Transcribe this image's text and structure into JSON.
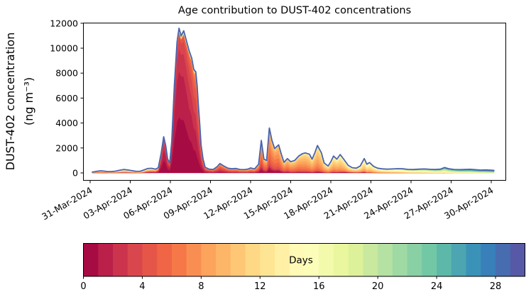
{
  "chart_data": {
    "type": "area",
    "subtype": "age-stacked-area-timeseries",
    "title": "Age contribution to DUST-402 concentrations",
    "ylabel_line1": "DUST-402 concentration",
    "ylabel_line2": "(ng m⁻³)",
    "xlabel": "",
    "ylim": [
      -625,
      12045
    ],
    "yticks": [
      0,
      2000,
      4000,
      6000,
      8000,
      10000,
      12000
    ],
    "xticks": [
      {
        "day": 0,
        "label": "31-Mar-2024"
      },
      {
        "day": 3,
        "label": "03-Apr-2024"
      },
      {
        "day": 6,
        "label": "06-Apr-2024"
      },
      {
        "day": 9,
        "label": "09-Apr-2024"
      },
      {
        "day": 12,
        "label": "12-Apr-2024"
      },
      {
        "day": 15,
        "label": "15-Apr-2024"
      },
      {
        "day": 18,
        "label": "18-Apr-2024"
      },
      {
        "day": 21,
        "label": "21-Apr-2024"
      },
      {
        "day": 24,
        "label": "24-Apr-2024"
      },
      {
        "day": 27,
        "label": "27-Apr-2024"
      },
      {
        "day": 30,
        "label": "30-Apr-2024"
      }
    ],
    "grid": false,
    "legend": "colorbar",
    "colorbar": {
      "label": "Days",
      "min": 0,
      "max": 30,
      "n_bins": 30,
      "ticks": [
        0,
        4,
        8,
        12,
        16,
        20,
        24,
        28
      ],
      "colormap_name": "Spectral",
      "colormap_anchors": [
        "#9e0142",
        "#d53e4f",
        "#f46d43",
        "#fdae61",
        "#fee08b",
        "#ffffbf",
        "#e6f598",
        "#abdda4",
        "#66c2a5",
        "#3288bd",
        "#5e4fa2"
      ]
    },
    "line_color": "#4a63ad",
    "samples_format": "[days_since_31_Mar_2024, total_ng_m3, mean_age_days, age_spread_days, fresh_age0_fraction]",
    "samples": [
      [
        0.16,
        60,
        9,
        5,
        0.05
      ],
      [
        0.5,
        130,
        9,
        5,
        0.05
      ],
      [
        0.8,
        170,
        9,
        5,
        0.05
      ],
      [
        1.0,
        150,
        9,
        5,
        0.05
      ],
      [
        1.3,
        110,
        9,
        5,
        0.05
      ],
      [
        1.6,
        100,
        10,
        5,
        0.05
      ],
      [
        1.9,
        140,
        10,
        5,
        0.05
      ],
      [
        2.2,
        210,
        10,
        5,
        0.05
      ],
      [
        2.5,
        270,
        10,
        5,
        0.05
      ],
      [
        2.8,
        240,
        10,
        5,
        0.05
      ],
      [
        3.1,
        180,
        10,
        5,
        0.05
      ],
      [
        3.4,
        130,
        10,
        5,
        0.05
      ],
      [
        3.7,
        120,
        11,
        5,
        0.05
      ],
      [
        4.0,
        230,
        10,
        5,
        0.08
      ],
      [
        4.3,
        350,
        9,
        5,
        0.1
      ],
      [
        4.6,
        370,
        8,
        5,
        0.1
      ],
      [
        4.9,
        300,
        7,
        5,
        0.1
      ],
      [
        5.1,
        420,
        5,
        4,
        0.15
      ],
      [
        5.3,
        1500,
        2.5,
        2.5,
        0.3
      ],
      [
        5.5,
        2900,
        1.5,
        1.8,
        0.3
      ],
      [
        5.65,
        2200,
        1.5,
        1.8,
        0.3
      ],
      [
        5.8,
        1100,
        2,
        2,
        0.2
      ],
      [
        5.95,
        800,
        2,
        2,
        0.2
      ],
      [
        6.1,
        2500,
        1.5,
        1.8,
        0.3
      ],
      [
        6.3,
        7000,
        1.2,
        1.6,
        0.3
      ],
      [
        6.5,
        10500,
        1.2,
        1.6,
        0.3
      ],
      [
        6.65,
        11600,
        1.2,
        1.6,
        0.3
      ],
      [
        6.8,
        11000,
        1.2,
        1.6,
        0.3
      ],
      [
        7.0,
        11400,
        1.3,
        1.7,
        0.3
      ],
      [
        7.2,
        10600,
        1.5,
        1.8,
        0.25
      ],
      [
        7.4,
        9800,
        1.8,
        2,
        0.2
      ],
      [
        7.6,
        9200,
        2,
        2.2,
        0.2
      ],
      [
        7.75,
        8300,
        2.2,
        2.4,
        0.15
      ],
      [
        7.9,
        8100,
        2.4,
        2.5,
        0.15
      ],
      [
        8.0,
        7000,
        2.5,
        2.5,
        0.1
      ],
      [
        8.1,
        5400,
        2.6,
        2.6,
        0.1
      ],
      [
        8.2,
        3900,
        2.7,
        2.7,
        0.1
      ],
      [
        8.3,
        2200,
        2.8,
        2.8,
        0.1
      ],
      [
        8.45,
        1100,
        3,
        3,
        0.08
      ],
      [
        8.6,
        450,
        3.2,
        3,
        0.05
      ],
      [
        8.9,
        300,
        3.5,
        3,
        0.05
      ],
      [
        9.2,
        280,
        3.8,
        3,
        0.05
      ],
      [
        9.5,
        500,
        4,
        3,
        0.05
      ],
      [
        9.7,
        750,
        4,
        3,
        0.05
      ],
      [
        10.0,
        550,
        4.3,
        3,
        0.05
      ],
      [
        10.3,
        380,
        4.6,
        3,
        0.05
      ],
      [
        10.6,
        330,
        5,
        3,
        0.05
      ],
      [
        10.9,
        360,
        5,
        3,
        0.05
      ],
      [
        11.2,
        280,
        5.5,
        3.2,
        0.05
      ],
      [
        11.5,
        260,
        5.5,
        3.2,
        0.05
      ],
      [
        11.8,
        300,
        6,
        3.2,
        0.05
      ],
      [
        12.0,
        400,
        6,
        3.2,
        0.08
      ],
      [
        12.3,
        320,
        6,
        3.2,
        0.1
      ],
      [
        12.6,
        700,
        6,
        3,
        0.12
      ],
      [
        12.8,
        2600,
        6,
        2.5,
        0.12
      ],
      [
        13.0,
        1100,
        6.5,
        2.5,
        0.12
      ],
      [
        13.2,
        1000,
        6.5,
        2.5,
        0.12
      ],
      [
        13.4,
        3600,
        6.5,
        2.2,
        0.12
      ],
      [
        13.6,
        2600,
        7,
        2.2,
        0.1
      ],
      [
        13.8,
        1950,
        7,
        2.2,
        0.1
      ],
      [
        14.1,
        2250,
        7,
        2.2,
        0.1
      ],
      [
        14.3,
        1500,
        7.5,
        2.5,
        0.08
      ],
      [
        14.5,
        850,
        7.5,
        2.5,
        0.08
      ],
      [
        14.75,
        1150,
        7.5,
        2.5,
        0.08
      ],
      [
        15.0,
        900,
        8,
        2.5,
        0.06
      ],
      [
        15.3,
        1000,
        8,
        2.5,
        0.06
      ],
      [
        15.6,
        1350,
        8,
        2.5,
        0.06
      ],
      [
        15.9,
        1550,
        8.5,
        2.5,
        0.05
      ],
      [
        16.1,
        1600,
        8.5,
        2.5,
        0.05
      ],
      [
        16.4,
        1500,
        9,
        2.5,
        0.05
      ],
      [
        16.6,
        1100,
        9,
        2.5,
        0.05
      ],
      [
        16.8,
        1600,
        9,
        2.5,
        0.05
      ],
      [
        17.0,
        2200,
        9,
        2.5,
        0.05
      ],
      [
        17.3,
        1600,
        9.5,
        2.5,
        0.05
      ],
      [
        17.5,
        800,
        9.5,
        2.8,
        0.05
      ],
      [
        17.8,
        550,
        10,
        2.8,
        0.05
      ],
      [
        18.0,
        900,
        10,
        2.8,
        0.05
      ],
      [
        18.2,
        1350,
        10,
        2.8,
        0.05
      ],
      [
        18.45,
        1100,
        10,
        2.8,
        0.05
      ],
      [
        18.7,
        1470,
        10.5,
        2.8,
        0.05
      ],
      [
        19.0,
        1050,
        10.5,
        2.8,
        0.08
      ],
      [
        19.3,
        600,
        11,
        3,
        0.1
      ],
      [
        19.6,
        420,
        11,
        3,
        0.1
      ],
      [
        19.9,
        380,
        11,
        3,
        0.1
      ],
      [
        20.2,
        550,
        11.5,
        3,
        0.08
      ],
      [
        20.5,
        1150,
        11.5,
        3,
        0.06
      ],
      [
        20.7,
        700,
        12,
        3,
        0.05
      ],
      [
        20.9,
        830,
        12,
        3,
        0.05
      ],
      [
        21.2,
        520,
        12,
        3,
        0.04
      ],
      [
        21.5,
        380,
        12.5,
        3.2,
        0.04
      ],
      [
        21.8,
        330,
        13,
        3.2,
        0.03
      ],
      [
        22.2,
        300,
        13.5,
        3.4,
        0.03
      ],
      [
        22.6,
        320,
        14,
        3.4,
        0.03
      ],
      [
        23.0,
        340,
        14.5,
        3.6,
        0.02
      ],
      [
        23.4,
        330,
        15,
        3.6,
        0.02
      ],
      [
        23.8,
        280,
        15.5,
        3.8,
        0.02
      ],
      [
        24.2,
        270,
        16,
        3.8,
        0.02
      ],
      [
        24.6,
        300,
        16.5,
        4,
        0.02
      ],
      [
        25.0,
        320,
        17,
        4,
        0.02
      ],
      [
        25.4,
        290,
        17.5,
        4,
        0.02
      ],
      [
        25.8,
        270,
        18,
        4.2,
        0.02
      ],
      [
        26.2,
        300,
        18.5,
        4.2,
        0.02
      ],
      [
        26.5,
        430,
        19,
        4.2,
        0.02
      ],
      [
        26.8,
        340,
        19.5,
        4.4,
        0.01
      ],
      [
        27.2,
        280,
        20,
        4.4,
        0.01
      ],
      [
        27.6,
        260,
        20.5,
        4.6,
        0.01
      ],
      [
        28.0,
        270,
        21,
        4.6,
        0.01
      ],
      [
        28.4,
        290,
        21.5,
        4.8,
        0.01
      ],
      [
        28.8,
        260,
        22,
        4.8,
        0.01
      ],
      [
        29.2,
        230,
        22.5,
        5,
        0.01
      ],
      [
        29.6,
        240,
        23,
        5,
        0.01
      ],
      [
        30.0,
        220,
        23.5,
        5,
        0.01
      ],
      [
        30.2,
        200,
        23.5,
        5,
        0.01
      ]
    ]
  },
  "colors": {
    "background": "#ffffff",
    "axis": "#000000",
    "text": "#000000"
  }
}
